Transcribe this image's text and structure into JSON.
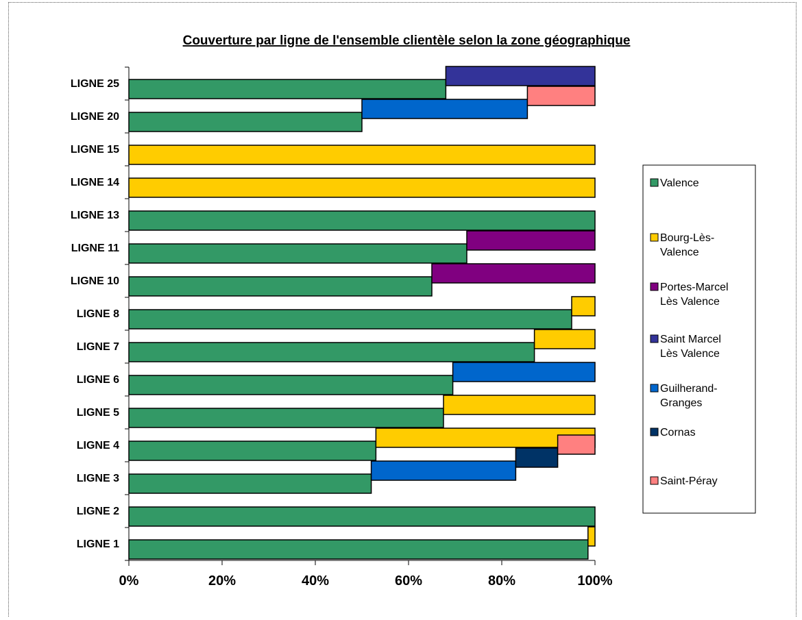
{
  "chart_data": {
    "type": "bar",
    "orientation": "horizontal",
    "stacked": "percent",
    "title": "Couverture par ligne de l'ensemble clientèle selon la zone géographique",
    "xlabel": "",
    "ylabel": "",
    "xlim": [
      0,
      100
    ],
    "x_ticks": [
      "0%",
      "20%",
      "40%",
      "60%",
      "80%",
      "100%"
    ],
    "grid": false,
    "legend_position": "right",
    "categories": [
      "LIGNE 25",
      "LIGNE 20",
      "LIGNE 15",
      "LIGNE 14",
      "LIGNE 13",
      "LIGNE 11",
      "LIGNE 10",
      "LIGNE 8",
      "LIGNE 7",
      "LIGNE 6",
      "LIGNE 5",
      "LIGNE 4",
      "LIGNE 3",
      "LIGNE 2",
      "LIGNE 1"
    ],
    "series": [
      {
        "name": "Valence",
        "color": "#339966",
        "values": [
          68,
          50,
          0,
          0,
          100,
          72.5,
          65,
          95,
          87,
          69.5,
          67.5,
          53,
          52,
          100,
          98.5
        ]
      },
      {
        "name": "Bourg-Lès-Valence",
        "color": "#FFCC00",
        "values": [
          0,
          0,
          100,
          100,
          0,
          0,
          0,
          5,
          13,
          0,
          32.5,
          47,
          0,
          0,
          1.5
        ]
      },
      {
        "name": "Portes-Marcel Lès Valence",
        "color": "#800080",
        "values": [
          0,
          0,
          0,
          0,
          0,
          27.5,
          35,
          0,
          0,
          0,
          0,
          0,
          0,
          0,
          0
        ]
      },
      {
        "name": "Saint Marcel Lès Valence",
        "color": "#333399",
        "values": [
          32,
          0,
          0,
          0,
          0,
          0,
          0,
          0,
          0,
          0,
          0,
          0,
          0,
          0,
          0
        ]
      },
      {
        "name": "Guilherand-Granges",
        "color": "#0066CC",
        "values": [
          0,
          35.5,
          0,
          0,
          0,
          0,
          0,
          0,
          0,
          30.5,
          0,
          0,
          31,
          0,
          0
        ]
      },
      {
        "name": "Cornas",
        "color": "#003366",
        "values": [
          0,
          0,
          0,
          0,
          0,
          0,
          0,
          0,
          0,
          0,
          0,
          0,
          9,
          0,
          0
        ]
      },
      {
        "name": "Saint-Péray",
        "color": "#FF8080",
        "values": [
          0,
          14.5,
          0,
          0,
          0,
          0,
          0,
          0,
          0,
          0,
          0,
          0,
          8,
          0,
          0
        ]
      }
    ]
  }
}
